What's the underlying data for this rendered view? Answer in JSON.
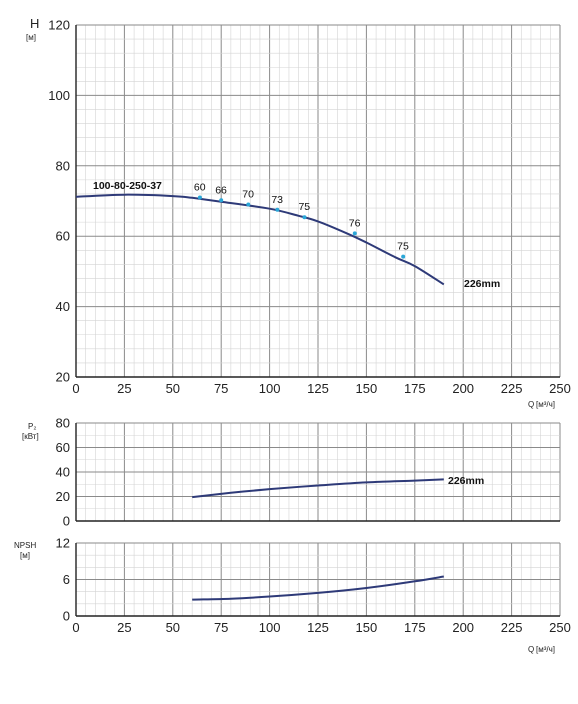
{
  "chart_data": [
    {
      "type": "line",
      "panel": "head",
      "ylabel": "H",
      "yunit": "[м]",
      "xlabel": "Q",
      "xunit": "[м³/ч]",
      "xlim": [
        0,
        250
      ],
      "ylim": [
        20,
        120
      ],
      "xticks": [
        0,
        25,
        50,
        75,
        100,
        125,
        150,
        175,
        200,
        225,
        250
      ],
      "yticks": [
        20,
        40,
        60,
        80,
        100,
        120
      ],
      "grid": true,
      "model_label": "100-80-250-37",
      "series": [
        {
          "name": "226mm",
          "x": [
            0,
            25,
            50,
            60,
            75,
            100,
            115,
            125,
            140,
            150,
            165,
            175,
            190
          ],
          "y": [
            71.2,
            71.8,
            71.4,
            70.9,
            69.8,
            67.8,
            65.8,
            64.2,
            60.8,
            58.2,
            54.0,
            51.5,
            46.3
          ]
        }
      ],
      "efficiency_labels": [
        {
          "text": "60",
          "x": 64,
          "y": 71.0
        },
        {
          "text": "66",
          "x": 75,
          "y": 70.2
        },
        {
          "text": "70",
          "x": 89,
          "y": 69.0
        },
        {
          "text": "73",
          "x": 104,
          "y": 67.5
        },
        {
          "text": "75",
          "x": 118,
          "y": 65.4
        },
        {
          "text": "76",
          "x": 144,
          "y": 60.8
        },
        {
          "text": "75",
          "x": 169,
          "y": 54.2
        }
      ]
    },
    {
      "type": "line",
      "panel": "power",
      "ylabel": "P₂",
      "yunit": "[кВт]",
      "xlim": [
        0,
        250
      ],
      "ylim": [
        0,
        80
      ],
      "yticks": [
        0,
        20,
        40,
        60,
        80
      ],
      "grid": true,
      "series": [
        {
          "name": "226mm",
          "x": [
            60,
            80,
            100,
            125,
            150,
            175,
            190
          ],
          "y": [
            19.5,
            23.0,
            26.0,
            29.0,
            31.5,
            33.0,
            34.0
          ]
        }
      ]
    },
    {
      "type": "line",
      "panel": "npsh",
      "ylabel": "NPSH",
      "yunit": "[м]",
      "xlabel": "Q",
      "xunit": "[м³/ч]",
      "xlim": [
        0,
        250
      ],
      "ylim": [
        0,
        12
      ],
      "xticks": [
        0,
        25,
        50,
        75,
        100,
        125,
        150,
        175,
        200,
        225,
        250
      ],
      "yticks": [
        0,
        6,
        12
      ],
      "grid": true,
      "series": [
        {
          "x": [
            60,
            80,
            100,
            125,
            150,
            175,
            190
          ],
          "y": [
            2.7,
            2.85,
            3.2,
            3.8,
            4.6,
            5.7,
            6.5
          ]
        }
      ]
    }
  ],
  "colors": {
    "curve": "#2e3a78",
    "grid_major": "#8a8a8a",
    "grid_minor": "#d4d4d4",
    "axis": "#222222",
    "marker": "#2aa7d8"
  }
}
